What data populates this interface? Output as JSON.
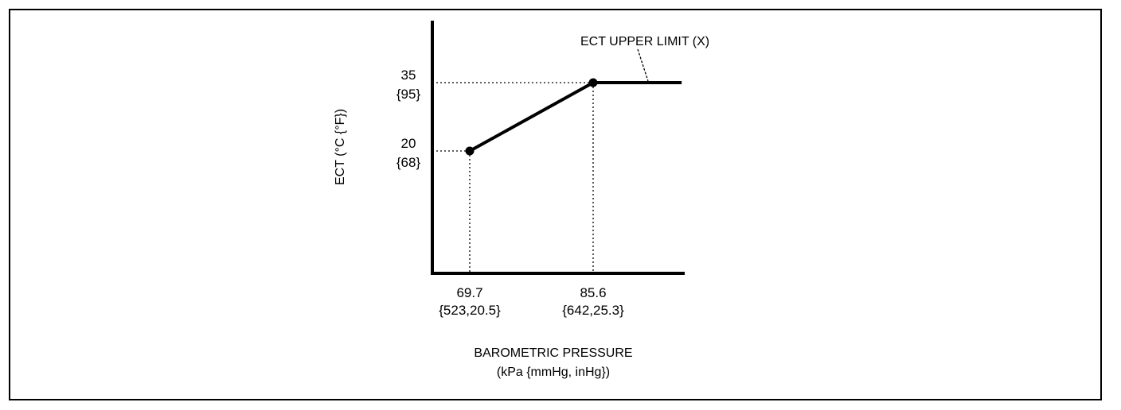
{
  "chart_data": {
    "type": "line",
    "xlabel": "BAROMETRIC PRESSURE",
    "xlabel_units": "(kPa {mmHg, inHg})",
    "ylabel": "ECT (°C {°F})",
    "annotation": "ECT UPPER LIMIT (X)",
    "x_ticks": [
      {
        "value": 69.7,
        "label": "69.7",
        "sublabel": "{523,20.5}"
      },
      {
        "value": 85.6,
        "label": "85.6",
        "sublabel": "{642,25.3}"
      }
    ],
    "y_ticks": [
      {
        "value": 20,
        "label": "20",
        "sublabel": "{68}"
      },
      {
        "value": 35,
        "label": "35",
        "sublabel": "{95}"
      }
    ],
    "series": [
      {
        "points": [
          {
            "x": 69.7,
            "y": 20
          },
          {
            "x": 85.6,
            "y": 35
          },
          {
            "x": 97,
            "y": 35
          }
        ]
      }
    ],
    "grid": false,
    "legend": "none"
  }
}
